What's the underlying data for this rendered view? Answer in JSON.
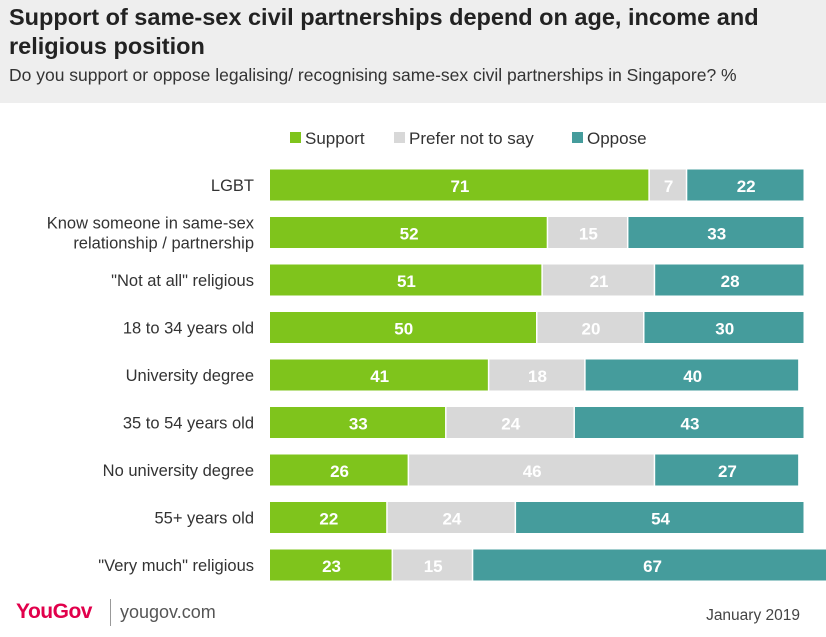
{
  "header": {
    "title": "Support of same-sex civil partnerships depend on age, income and religious position",
    "subtitle": "Do you support or oppose legalising/ recognising same-sex civil partnerships in Singapore? %"
  },
  "footer": {
    "brand": "YouGov",
    "url": "yougov.com",
    "date": "January 2019"
  },
  "colors": {
    "support": "#7fc41c",
    "prefer_not": "#d8d8d8",
    "oppose": "#459c9c"
  },
  "chart_data": {
    "type": "bar",
    "orientation": "horizontal",
    "stacked": true,
    "categories": [
      "LGBT",
      [
        "Know someone in same-sex",
        "relationship / partnership"
      ],
      "\"Not at all\" religious",
      "18 to 34 years old",
      "University degree",
      "35 to 54 years old",
      "No university degree",
      "55+ years old",
      "\"Very much\" religious"
    ],
    "series": [
      {
        "name": "Support",
        "color": "#7fc41c",
        "values": [
          71,
          52,
          51,
          50,
          41,
          33,
          26,
          22,
          23
        ]
      },
      {
        "name": "Prefer not to say",
        "color": "#d8d8d8",
        "values": [
          7,
          15,
          21,
          20,
          18,
          24,
          46,
          24,
          15
        ]
      },
      {
        "name": "Oppose",
        "color": "#459c9c",
        "values": [
          22,
          33,
          28,
          30,
          40,
          43,
          27,
          54,
          67
        ]
      }
    ],
    "xlim": [
      0,
      100
    ],
    "legend_position": "top-center",
    "grid": false
  }
}
